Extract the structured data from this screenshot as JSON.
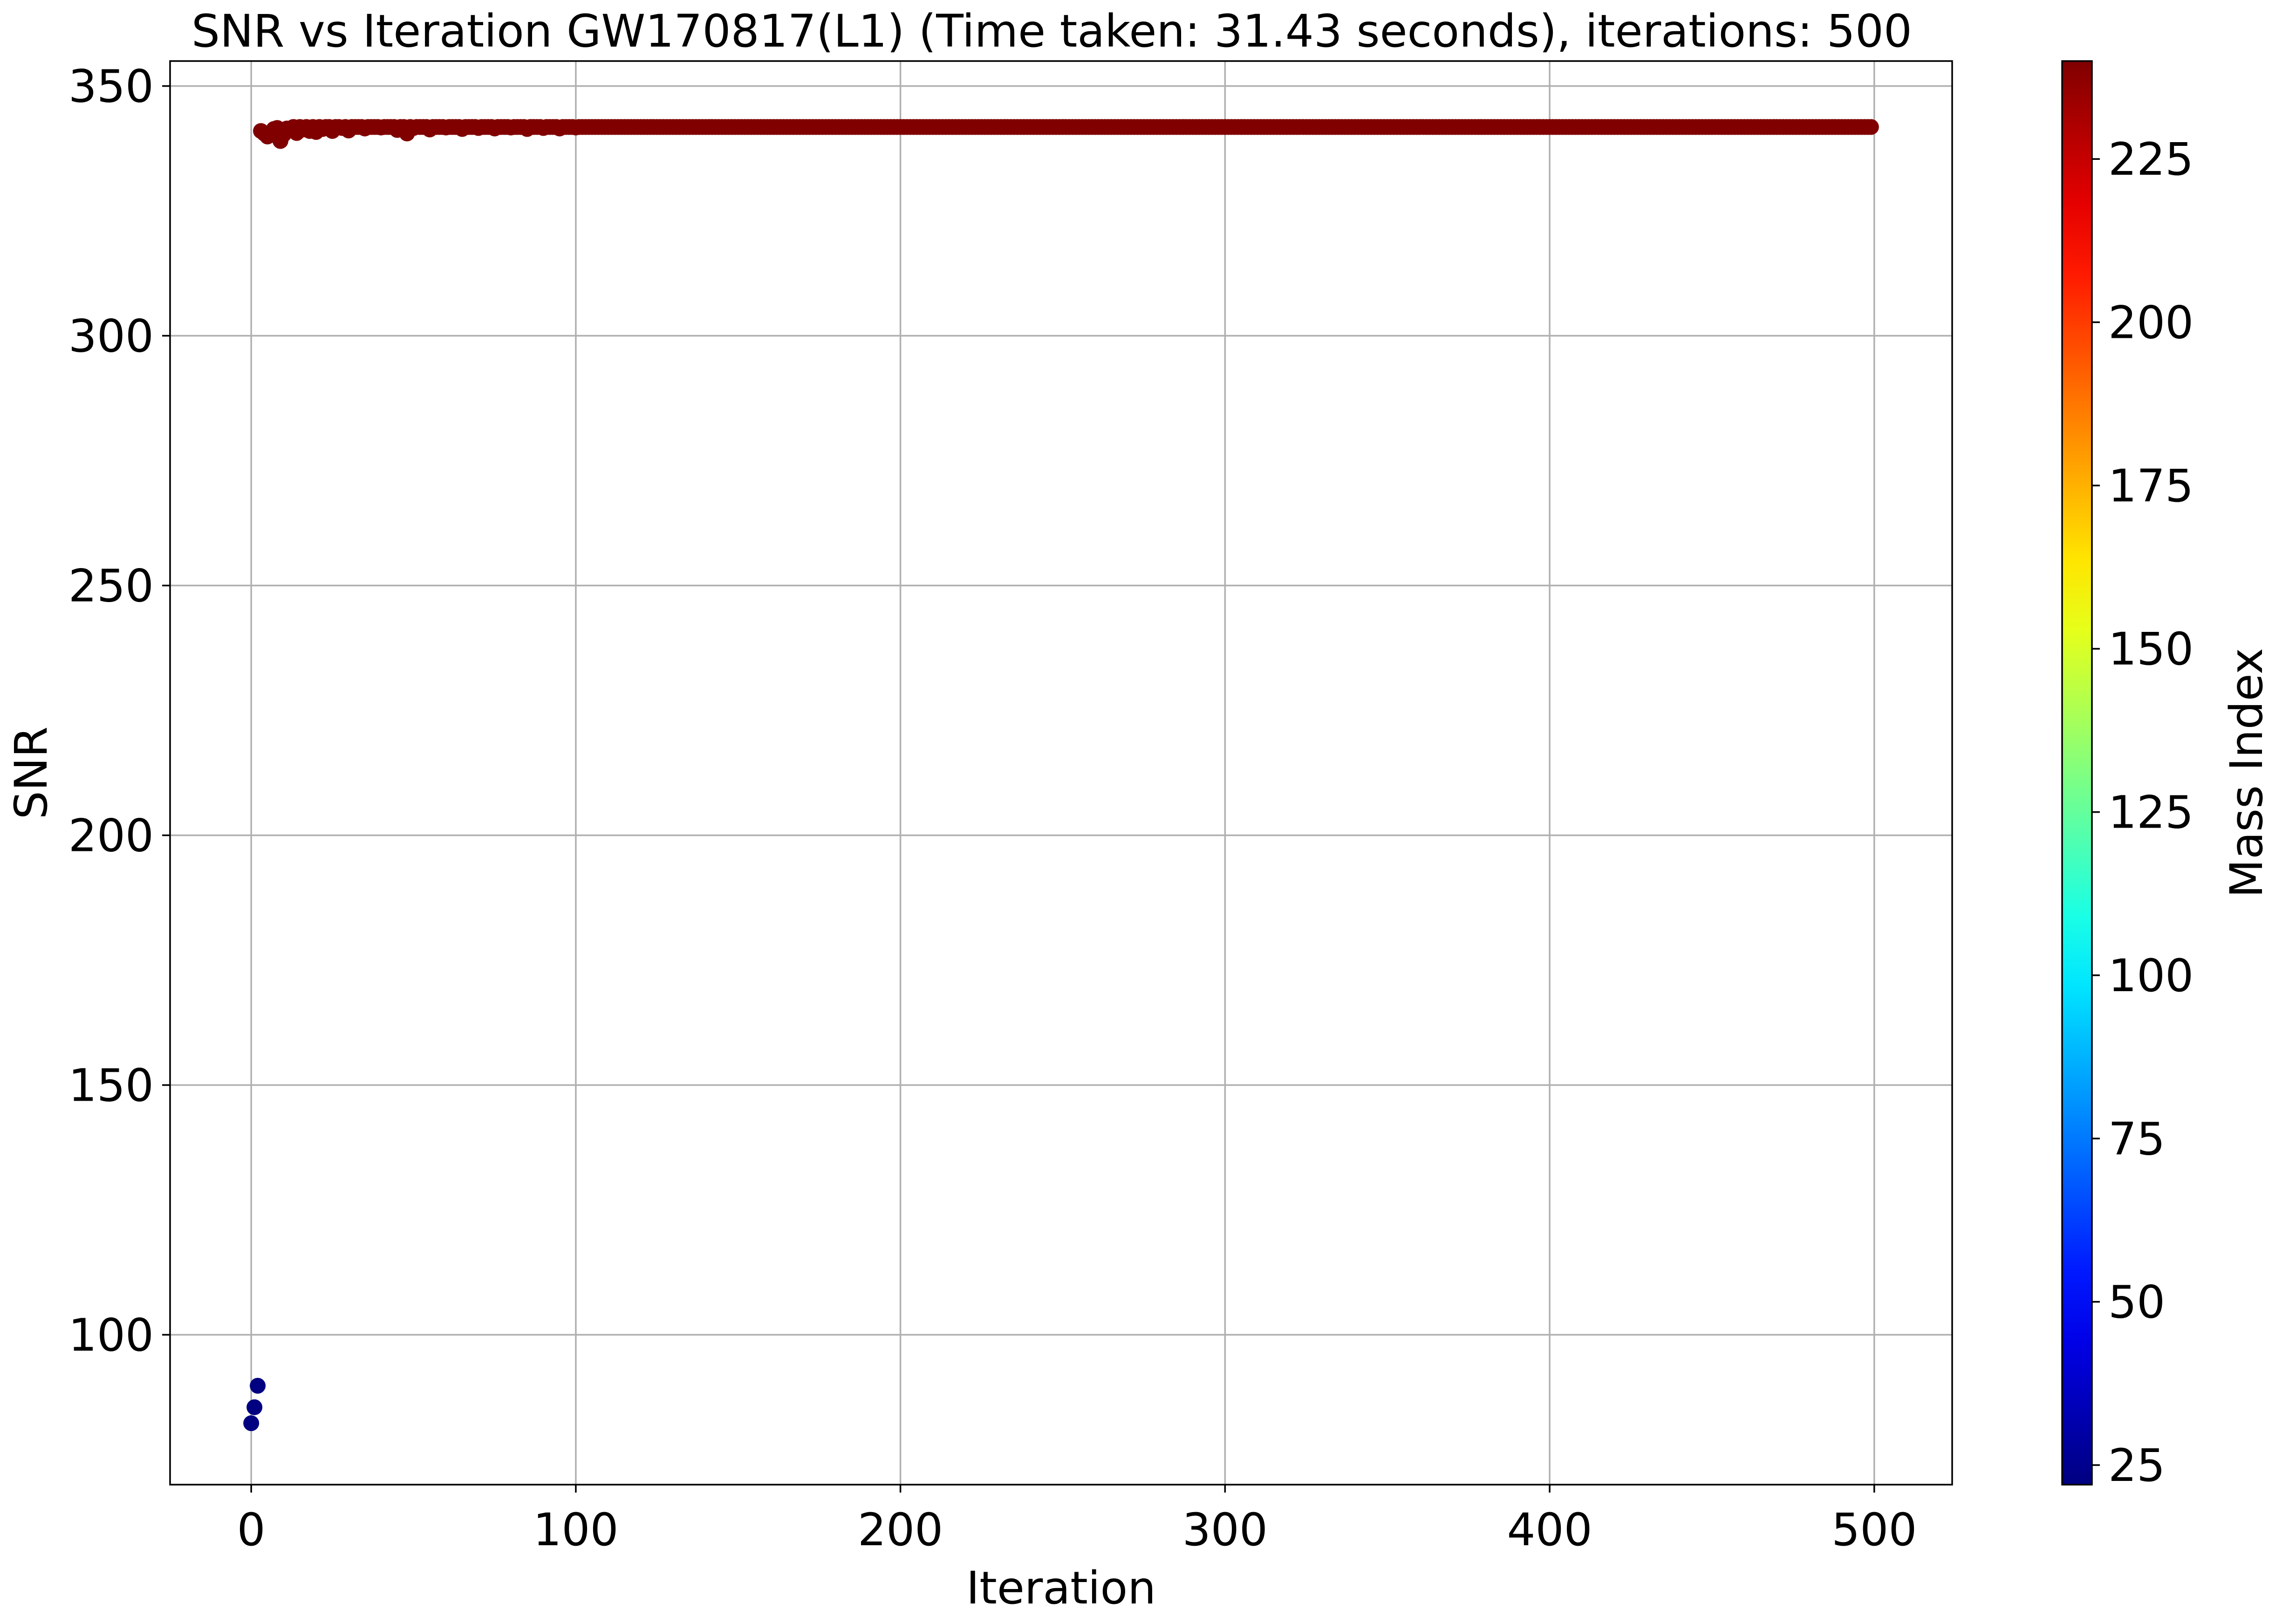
{
  "chart_data": {
    "type": "scatter",
    "title": "SNR vs Iteration GW170817(L1) (Time taken: 31.43 seconds), iterations: 500",
    "xlabel": "Iteration",
    "ylabel": "SNR",
    "xlim": [
      -25,
      524
    ],
    "ylim": [
      70,
      355
    ],
    "xticks": [
      0,
      100,
      200,
      300,
      400,
      500
    ],
    "yticks": [
      100,
      150,
      200,
      250,
      300,
      350
    ],
    "grid": true,
    "colorbar": {
      "label": "Mass Index",
      "colormap": "jet",
      "range": [
        22,
        240
      ],
      "ticks": [
        25,
        50,
        75,
        100,
        125,
        150,
        175,
        200,
        225
      ]
    },
    "series": [
      {
        "points_low": [
          {
            "x": 0,
            "y": 82.3,
            "c": 22
          },
          {
            "x": 1,
            "y": 85.5,
            "c": 22
          },
          {
            "x": 2,
            "y": 89.8,
            "c": 22
          }
        ],
        "plateau": {
          "x_start": 3,
          "x_end": 499,
          "y": 341.8,
          "c": 240,
          "early_values": [
            {
              "x": 3,
              "y": 341.0
            },
            {
              "x": 4,
              "y": 340.5
            },
            {
              "x": 5,
              "y": 339.9
            },
            {
              "x": 6,
              "y": 340.2
            },
            {
              "x": 7,
              "y": 341.4
            },
            {
              "x": 8,
              "y": 341.6
            },
            {
              "x": 9,
              "y": 339.0
            },
            {
              "x": 10,
              "y": 340.3
            },
            {
              "x": 11,
              "y": 341.5
            },
            {
              "x": 12,
              "y": 341.2
            },
            {
              "x": 14,
              "y": 340.6
            },
            {
              "x": 16,
              "y": 341.3
            },
            {
              "x": 18,
              "y": 341.0
            },
            {
              "x": 20,
              "y": 340.8
            },
            {
              "x": 22,
              "y": 341.4
            },
            {
              "x": 25,
              "y": 341.0
            },
            {
              "x": 28,
              "y": 341.6
            },
            {
              "x": 30,
              "y": 341.1
            },
            {
              "x": 35,
              "y": 341.5
            },
            {
              "x": 40,
              "y": 341.7
            },
            {
              "x": 45,
              "y": 341.2
            },
            {
              "x": 48,
              "y": 340.5
            },
            {
              "x": 50,
              "y": 341.6
            },
            {
              "x": 55,
              "y": 341.3
            },
            {
              "x": 60,
              "y": 341.7
            },
            {
              "x": 65,
              "y": 341.4
            },
            {
              "x": 70,
              "y": 341.6
            },
            {
              "x": 75,
              "y": 341.5
            },
            {
              "x": 80,
              "y": 341.7
            },
            {
              "x": 85,
              "y": 341.4
            },
            {
              "x": 90,
              "y": 341.6
            },
            {
              "x": 95,
              "y": 341.5
            },
            {
              "x": 100,
              "y": 341.7
            }
          ]
        }
      }
    ]
  }
}
